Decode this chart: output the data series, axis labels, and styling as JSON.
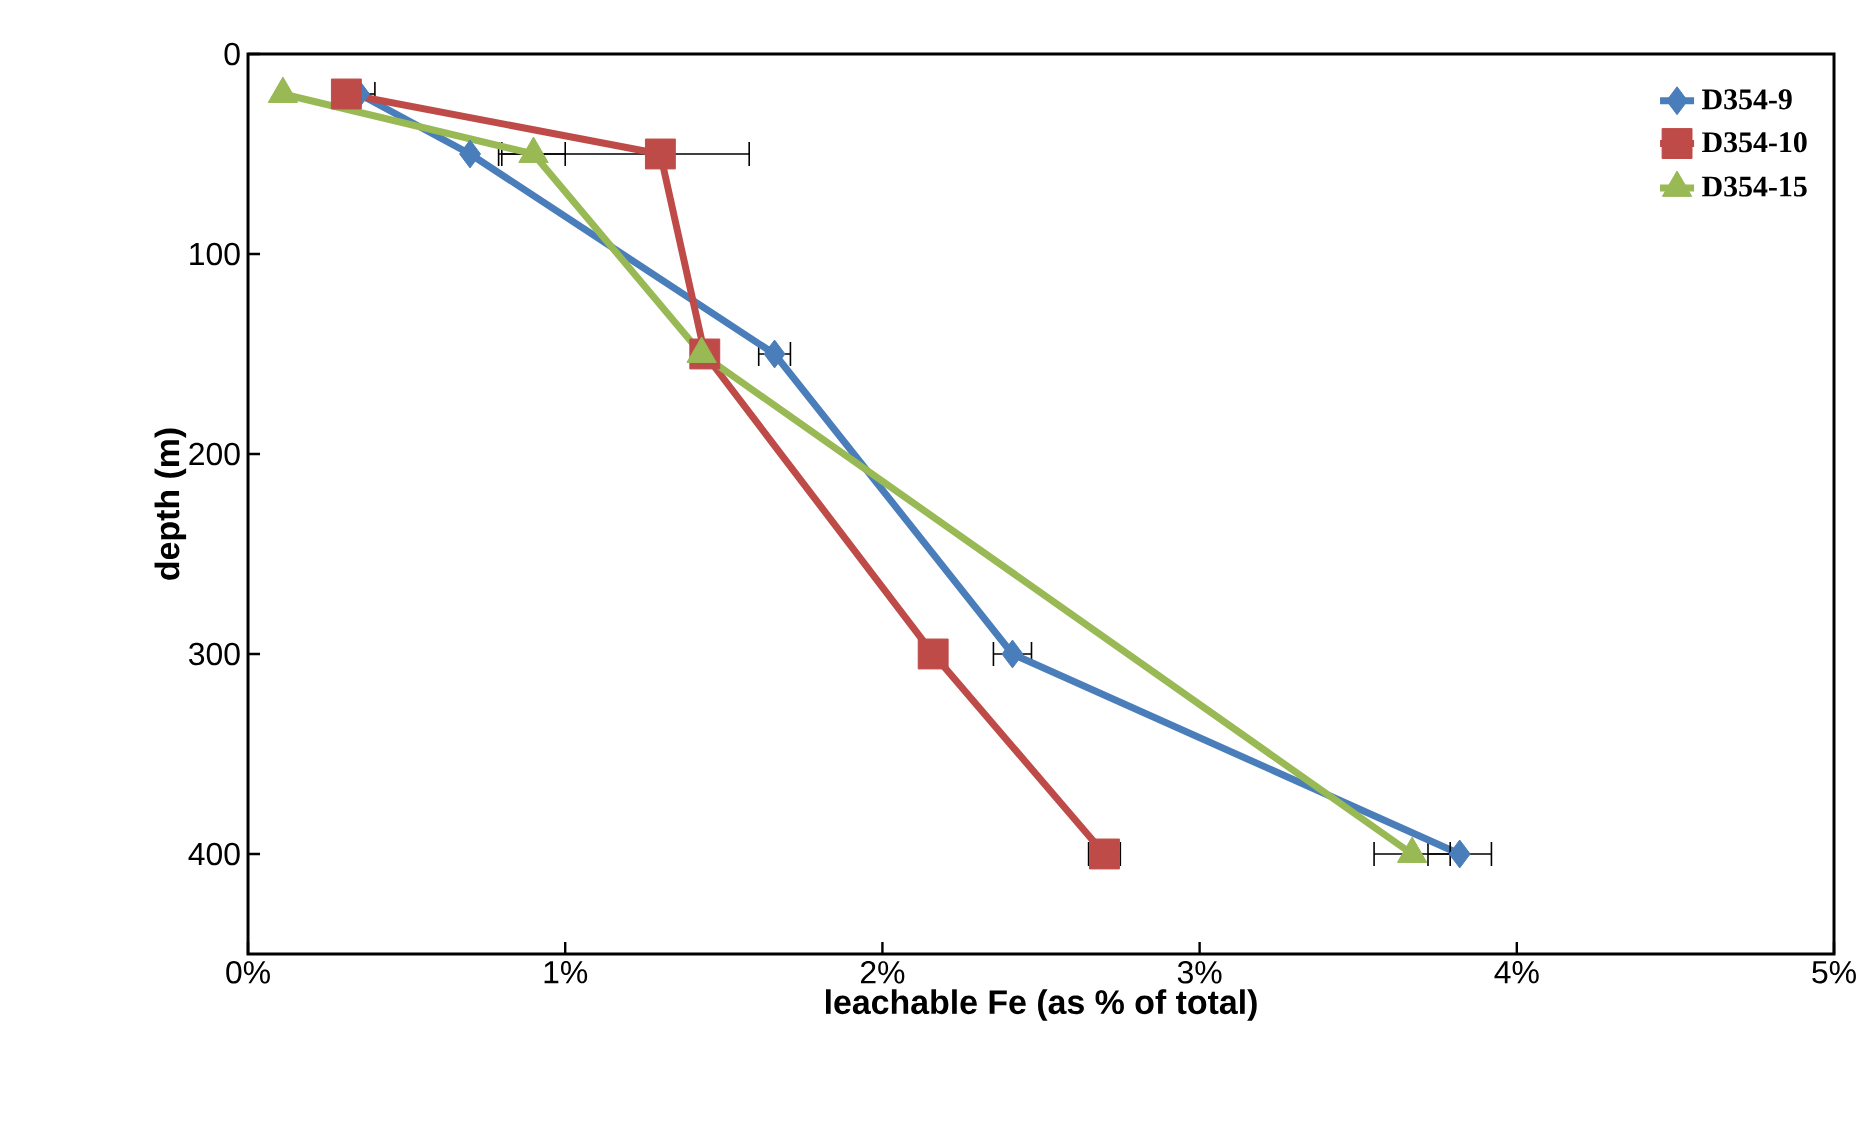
{
  "chart_data": {
    "type": "line",
    "xlabel": "leachable Fe (as % of total)",
    "ylabel": "depth (m)",
    "xlim": [
      0,
      5
    ],
    "xticks": [
      {
        "value": 0,
        "label": "0%"
      },
      {
        "value": 1,
        "label": "1%"
      },
      {
        "value": 2,
        "label": "2%"
      },
      {
        "value": 3,
        "label": "3%"
      },
      {
        "value": 4,
        "label": "4%"
      },
      {
        "value": 5,
        "label": "5%"
      }
    ],
    "ylim": [
      450,
      0
    ],
    "yticks": [
      0,
      100,
      200,
      300,
      400
    ],
    "legend": "top right",
    "grid": false,
    "line_style": "solid",
    "series": [
      {
        "name": "D354-9",
        "color": "#4a7ebb",
        "marker": "diamond",
        "x": [
          0.35,
          0.7,
          1.66,
          2.41,
          3.82
        ],
        "values": [
          20,
          50,
          150,
          300,
          400
        ],
        "xerrors": [
          0.05,
          null,
          0.05,
          0.06,
          0.1
        ]
      },
      {
        "name": "D354-10",
        "color": "#be4b48",
        "marker": "square",
        "x": [
          0.31,
          1.3,
          1.44,
          2.16,
          2.7
        ],
        "values": [
          20,
          50,
          150,
          300,
          400
        ],
        "xerrors": [
          null,
          [
            0.79,
            1.58
          ],
          null,
          null,
          0.05
        ]
      },
      {
        "name": "D354-15",
        "color": "#98b954",
        "marker": "triangle",
        "x": [
          0.11,
          0.9,
          1.43,
          3.67
        ],
        "values": [
          20,
          50,
          150,
          400
        ],
        "xerrors": [
          null,
          0.1,
          null,
          0.12
        ]
      }
    ]
  }
}
